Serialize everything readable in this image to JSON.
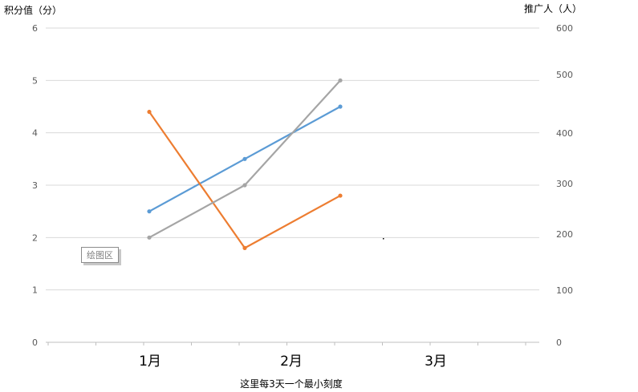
{
  "chart_data": {
    "type": "line",
    "y_left": {
      "title": "积分值（分）",
      "range": [
        0,
        6
      ],
      "ticks": [
        "0",
        "1",
        "2",
        "3",
        "4",
        "5",
        "6"
      ]
    },
    "y_right": {
      "title": "推广人（人）",
      "range": [
        0,
        600
      ],
      "ticks": [
        "0",
        "100",
        "200",
        "300",
        "400",
        "500",
        "600"
      ]
    },
    "x": {
      "title": "这里每3天一个最小刻度",
      "month_labels": [
        "1月",
        "2月",
        "3月"
      ]
    },
    "series": [
      {
        "color": "#5b9bd5",
        "axis": "left",
        "points": [
          [
            1,
            2.5
          ],
          [
            2,
            3.5
          ],
          [
            3,
            4.5
          ]
        ]
      },
      {
        "color": "#ed7d31",
        "axis": "left",
        "points": [
          [
            1,
            4.4
          ],
          [
            2,
            1.8
          ],
          [
            3,
            2.8
          ]
        ]
      },
      {
        "color": "#a5a5a5",
        "axis": "left",
        "points": [
          [
            1,
            2.0
          ],
          [
            2,
            3.0
          ],
          [
            3,
            5.0
          ]
        ]
      }
    ],
    "grid": true,
    "tooltip": "绘图区"
  }
}
